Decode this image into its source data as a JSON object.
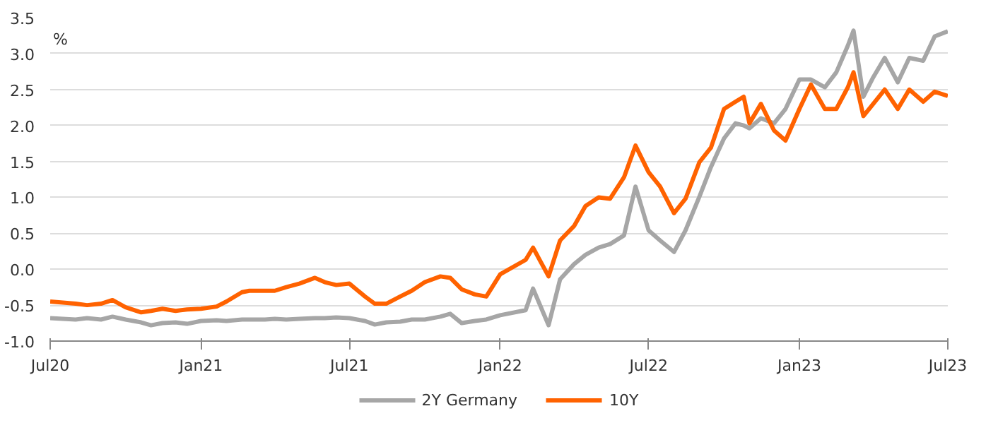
{
  "chart_data": {
    "type": "line",
    "ylabel": "%",
    "x": [
      "2020-07-01",
      "2020-08-01",
      "2020-08-15",
      "2020-09-01",
      "2020-09-15",
      "2020-10-01",
      "2020-10-20",
      "2020-11-01",
      "2020-11-15",
      "2020-12-01",
      "2020-12-15",
      "2021-01-01",
      "2021-01-20",
      "2021-02-01",
      "2021-02-20",
      "2021-03-01",
      "2021-03-20",
      "2021-04-01",
      "2021-04-15",
      "2021-05-01",
      "2021-05-20",
      "2021-06-01",
      "2021-06-15",
      "2021-07-01",
      "2021-07-20",
      "2021-08-01",
      "2021-08-15",
      "2021-09-01",
      "2021-09-15",
      "2021-10-01",
      "2021-10-20",
      "2021-11-01",
      "2021-11-15",
      "2021-12-01",
      "2021-12-15",
      "2022-01-01",
      "2022-02-01",
      "2022-02-10",
      "2022-03-01",
      "2022-03-15",
      "2022-04-01",
      "2022-04-15",
      "2022-05-01",
      "2022-05-15",
      "2022-06-01",
      "2022-06-15",
      "2022-07-01",
      "2022-07-15",
      "2022-08-01",
      "2022-08-15",
      "2022-09-01",
      "2022-09-15",
      "2022-10-01",
      "2022-10-15",
      "2022-10-25",
      "2022-11-01",
      "2022-11-15",
      "2022-12-01",
      "2022-12-15",
      "2023-01-01",
      "2023-01-15",
      "2023-02-01",
      "2023-02-15",
      "2023-03-01",
      "2023-03-08",
      "2023-03-20",
      "2023-04-01",
      "2023-04-15",
      "2023-05-01",
      "2023-05-15",
      "2023-06-01",
      "2023-06-15",
      "2023-07-01"
    ],
    "series": [
      {
        "name": "2Y Germany",
        "color": "#a6a6a6",
        "values": [
          -0.68,
          -0.7,
          -0.68,
          -0.7,
          -0.66,
          -0.7,
          -0.74,
          -0.78,
          -0.75,
          -0.74,
          -0.76,
          -0.72,
          -0.71,
          -0.72,
          -0.7,
          -0.7,
          -0.7,
          -0.69,
          -0.7,
          -0.69,
          -0.68,
          -0.68,
          -0.67,
          -0.68,
          -0.72,
          -0.77,
          -0.74,
          -0.73,
          -0.7,
          -0.7,
          -0.66,
          -0.62,
          -0.75,
          -0.72,
          -0.7,
          -0.64,
          -0.57,
          -0.27,
          -0.78,
          -0.14,
          0.07,
          0.2,
          0.3,
          0.35,
          0.47,
          1.15,
          0.54,
          0.4,
          0.24,
          0.54,
          1.01,
          1.42,
          1.82,
          2.03,
          2.0,
          1.96,
          2.1,
          2.03,
          2.23,
          2.64,
          2.64,
          2.53,
          2.74,
          3.11,
          3.32,
          2.4,
          2.67,
          2.94,
          2.6,
          2.94,
          2.9,
          3.24,
          3.31
        ]
      },
      {
        "name": "10Y",
        "color": "#ff6200",
        "values": [
          -0.45,
          -0.48,
          -0.5,
          -0.48,
          -0.43,
          -0.53,
          -0.6,
          -0.58,
          -0.55,
          -0.58,
          -0.56,
          -0.55,
          -0.52,
          -0.45,
          -0.32,
          -0.3,
          -0.3,
          -0.3,
          -0.25,
          -0.2,
          -0.12,
          -0.18,
          -0.22,
          -0.2,
          -0.38,
          -0.48,
          -0.48,
          -0.38,
          -0.3,
          -0.18,
          -0.1,
          -0.12,
          -0.28,
          -0.35,
          -0.38,
          -0.07,
          0.13,
          0.3,
          -0.1,
          0.4,
          0.6,
          0.88,
          1.0,
          0.98,
          1.28,
          1.72,
          1.35,
          1.15,
          0.78,
          0.98,
          1.49,
          1.69,
          2.23,
          2.33,
          2.4,
          2.03,
          2.3,
          1.93,
          1.79,
          2.23,
          2.57,
          2.23,
          2.23,
          2.53,
          2.74,
          2.13,
          2.3,
          2.5,
          2.23,
          2.5,
          2.33,
          2.47,
          2.41
        ]
      }
    ],
    "xlim": [
      "2020-07-01",
      "2023-07-01"
    ],
    "xticks": [
      {
        "value": "2020-07-01",
        "label": "Jul20"
      },
      {
        "value": "2021-01-01",
        "label": "Jan21"
      },
      {
        "value": "2021-07-01",
        "label": "Jul21"
      },
      {
        "value": "2022-01-01",
        "label": "Jan22"
      },
      {
        "value": "2022-07-01",
        "label": "Jul22"
      },
      {
        "value": "2023-01-01",
        "label": "Jan23"
      },
      {
        "value": "2023-07-01",
        "label": "Jul23"
      }
    ],
    "ylim": [
      -1.0,
      3.5
    ],
    "yticks": [
      {
        "value": -1,
        "label": "-1.0"
      },
      -0.5,
      {
        "value": 0,
        "label": "0.0"
      },
      0.5,
      {
        "value": 1,
        "label": "1.0"
      },
      1.5,
      {
        "value": 2,
        "label": "2.0"
      },
      2.5,
      {
        "value": 3,
        "label": "3.0"
      },
      3.5
    ],
    "grid": "y",
    "legend": "bottom",
    "line_style": "solid",
    "marker": "none"
  }
}
